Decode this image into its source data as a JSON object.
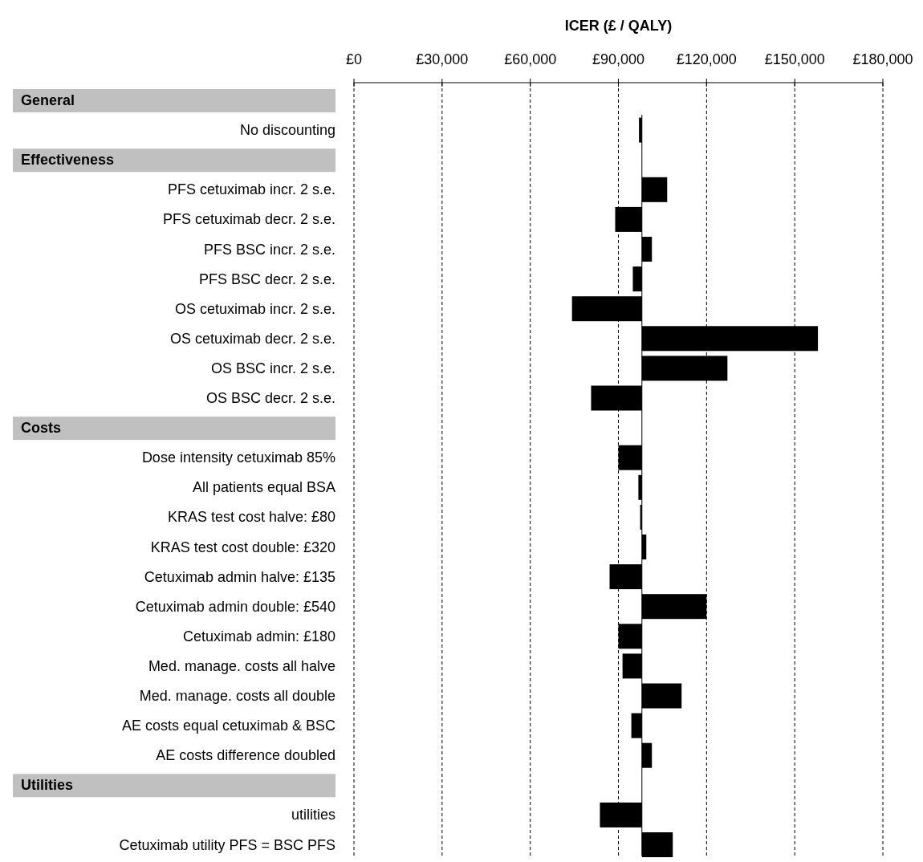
{
  "chart_data": {
    "type": "bar",
    "orientation": "horizontal",
    "xlabel": "ICER (£ / QALY)",
    "annotations": [
      "General",
      "Effectiveness",
      "Costs",
      "Utilities"
    ],
    "categories": [
      null,
      "No discounting",
      null,
      "PFS cetuximab incr. 2 s.e.",
      "PFS cetuximab decr. 2 s.e.",
      "PFS BSC incr. 2 s.e.",
      "PFS BSC decr. 2 s.e.",
      "OS cetuximab incr. 2 s.e.",
      "OS cetuximab decr. 2 s.e.",
      "OS BSC incr. 2 s.e.",
      "OS BSC decr. 2 s.e.",
      null,
      "Dose intensity cetuximab 85%",
      "All patients equal BSA",
      "KRAS test cost halve: £80",
      "KRAS test cost double: £320",
      "Cetuximab admin halve: £135",
      "Cetuximab admin double: £540",
      "Cetuximab admin: £180",
      "Med. manage. costs all halve",
      "Med. manage. costs all double",
      "AE costs equal cetuximab & BSC",
      "AE costs difference doubled",
      null,
      "utilities",
      "Cetuximab utility PFS = BSC PFS"
    ],
    "values": [
      null,
      -1000,
      null,
      8600,
      -9100,
      3400,
      -3100,
      -23800,
      59900,
      29100,
      -17300,
      null,
      -8000,
      -1200,
      -600,
      1500,
      -11000,
      22000,
      -8000,
      -6600,
      13500,
      -3600,
      3400,
      null,
      -14300,
      10500
    ],
    "base": [
      null,
      98000,
      null,
      98000,
      98000,
      98000,
      98000,
      98000,
      98000,
      98000,
      98000,
      null,
      98000,
      98000,
      98000,
      98000,
      98000,
      98000,
      98000,
      98000,
      98000,
      98000,
      98000,
      null,
      98000,
      98000
    ],
    "color": "#000000",
    "xlim": [
      0,
      180000
    ],
    "xticks": [
      {
        "value": 0,
        "label": "£0"
      },
      {
        "value": 30000,
        "label": "£30,000"
      },
      {
        "value": 60000,
        "label": "£60,000"
      },
      {
        "value": 90000,
        "label": "£90,000"
      },
      {
        "value": 120000,
        "label": "£120,000"
      },
      {
        "value": 150000,
        "label": "£150,000"
      },
      {
        "value": 180000,
        "label": "£180,000"
      }
    ],
    "grid": "x",
    "ref_lines": [
      {
        "axis": "x",
        "value": 98000,
        "color": "#000000"
      }
    ]
  }
}
